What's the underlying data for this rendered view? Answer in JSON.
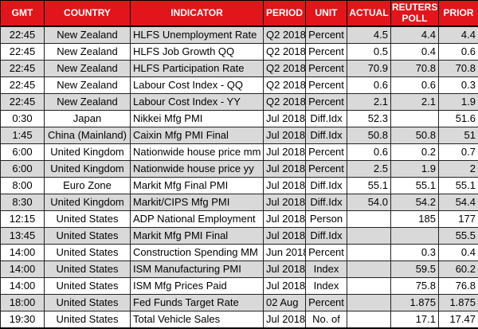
{
  "colors": {
    "header_bg": "#E2151B",
    "header_text": "#FFFFFF",
    "row_shaded_bg": "#D9D9D9",
    "row_plain_bg": "#FFFFFF",
    "grid_border": "#000000"
  },
  "chart_data": {
    "type": "table",
    "columns": [
      "GMT",
      "COUNTRY",
      "INDICATOR",
      "PERIOD",
      "UNIT",
      "ACTUAL",
      "REUTERS POLL",
      "PRIOR"
    ],
    "rows": [
      [
        "22:45",
        "New Zealand",
        "HLFS Unemployment Rate",
        "Q2 2018",
        "Percent",
        "4.5",
        "4.4",
        "4.4"
      ],
      [
        "22:45",
        "New Zealand",
        "HLFS Job Growth QQ",
        "Q2 2018",
        "Percent",
        "0.5",
        "0.4",
        "0.6"
      ],
      [
        "22:45",
        "New Zealand",
        "HLFS Participation Rate",
        "Q2 2018",
        "Percent",
        "70.9",
        "70.8",
        "70.8"
      ],
      [
        "22:45",
        "New Zealand",
        "Labour Cost Index - QQ",
        "Q2 2018",
        "Percent",
        "0.6",
        "0.6",
        "0.3"
      ],
      [
        "22:45",
        "New Zealand",
        "Labour Cost Index - YY",
        "Q2 2018",
        "Percent",
        "2.1",
        "2.1",
        "1.9"
      ],
      [
        "0:30",
        "Japan",
        "Nikkei Mfg PMI",
        "Jul 2018",
        "Diff.Idx",
        "52.3",
        "",
        "51.6"
      ],
      [
        "1:45",
        "China (Mainland)",
        "Caixin Mfg PMI Final",
        "Jul 2018",
        "Diff.Idx",
        "50.8",
        "50.8",
        "51"
      ],
      [
        "6:00",
        "United Kingdom",
        "Nationwide house price mm",
        "Jul 2018",
        "Percent",
        "0.6",
        "0.2",
        "0.7"
      ],
      [
        "6:00",
        "United Kingdom",
        "Nationwide house price yy",
        "Jul 2018",
        "Percent",
        "2.5",
        "1.9",
        "2"
      ],
      [
        "8:00",
        "Euro Zone",
        "Markit Mfg Final PMI",
        "Jul 2018",
        "Diff.Idx",
        "55.1",
        "55.1",
        "55.1"
      ],
      [
        "8:30",
        "United Kingdom",
        "Markit/CIPS Mfg PMI",
        "Jul 2018",
        "Diff.Idx",
        "54.0",
        "54.2",
        "54.4"
      ],
      [
        "12:15",
        "United States",
        "ADP National Employment",
        "Jul 2018",
        "Person",
        "",
        "185",
        "177"
      ],
      [
        "13:45",
        "United States",
        "Markit Mfg PMI Final",
        "Jul 2018",
        "Diff.Idx",
        "",
        "",
        "55.5"
      ],
      [
        "14:00",
        "United States",
        "Construction Spending MM",
        "Jun 2018",
        "Percent",
        "",
        "0.3",
        "0.4"
      ],
      [
        "14:00",
        "United States",
        "ISM Manufacturing PMI",
        "Jul 2018",
        "Index",
        "",
        "59.5",
        "60.2"
      ],
      [
        "14:00",
        "United States",
        "ISM Mfg Prices Paid",
        "Jul 2018",
        "Index",
        "",
        "75.8",
        "76.8"
      ],
      [
        "18:00",
        "United States",
        "Fed Funds Target Rate",
        "02 Aug",
        "Percent",
        "",
        "1.875",
        "1.875"
      ],
      [
        "19:30",
        "United States",
        "Total Vehicle Sales",
        "Jul 2018",
        "No. of",
        "",
        "17.1",
        "17.47"
      ]
    ]
  }
}
